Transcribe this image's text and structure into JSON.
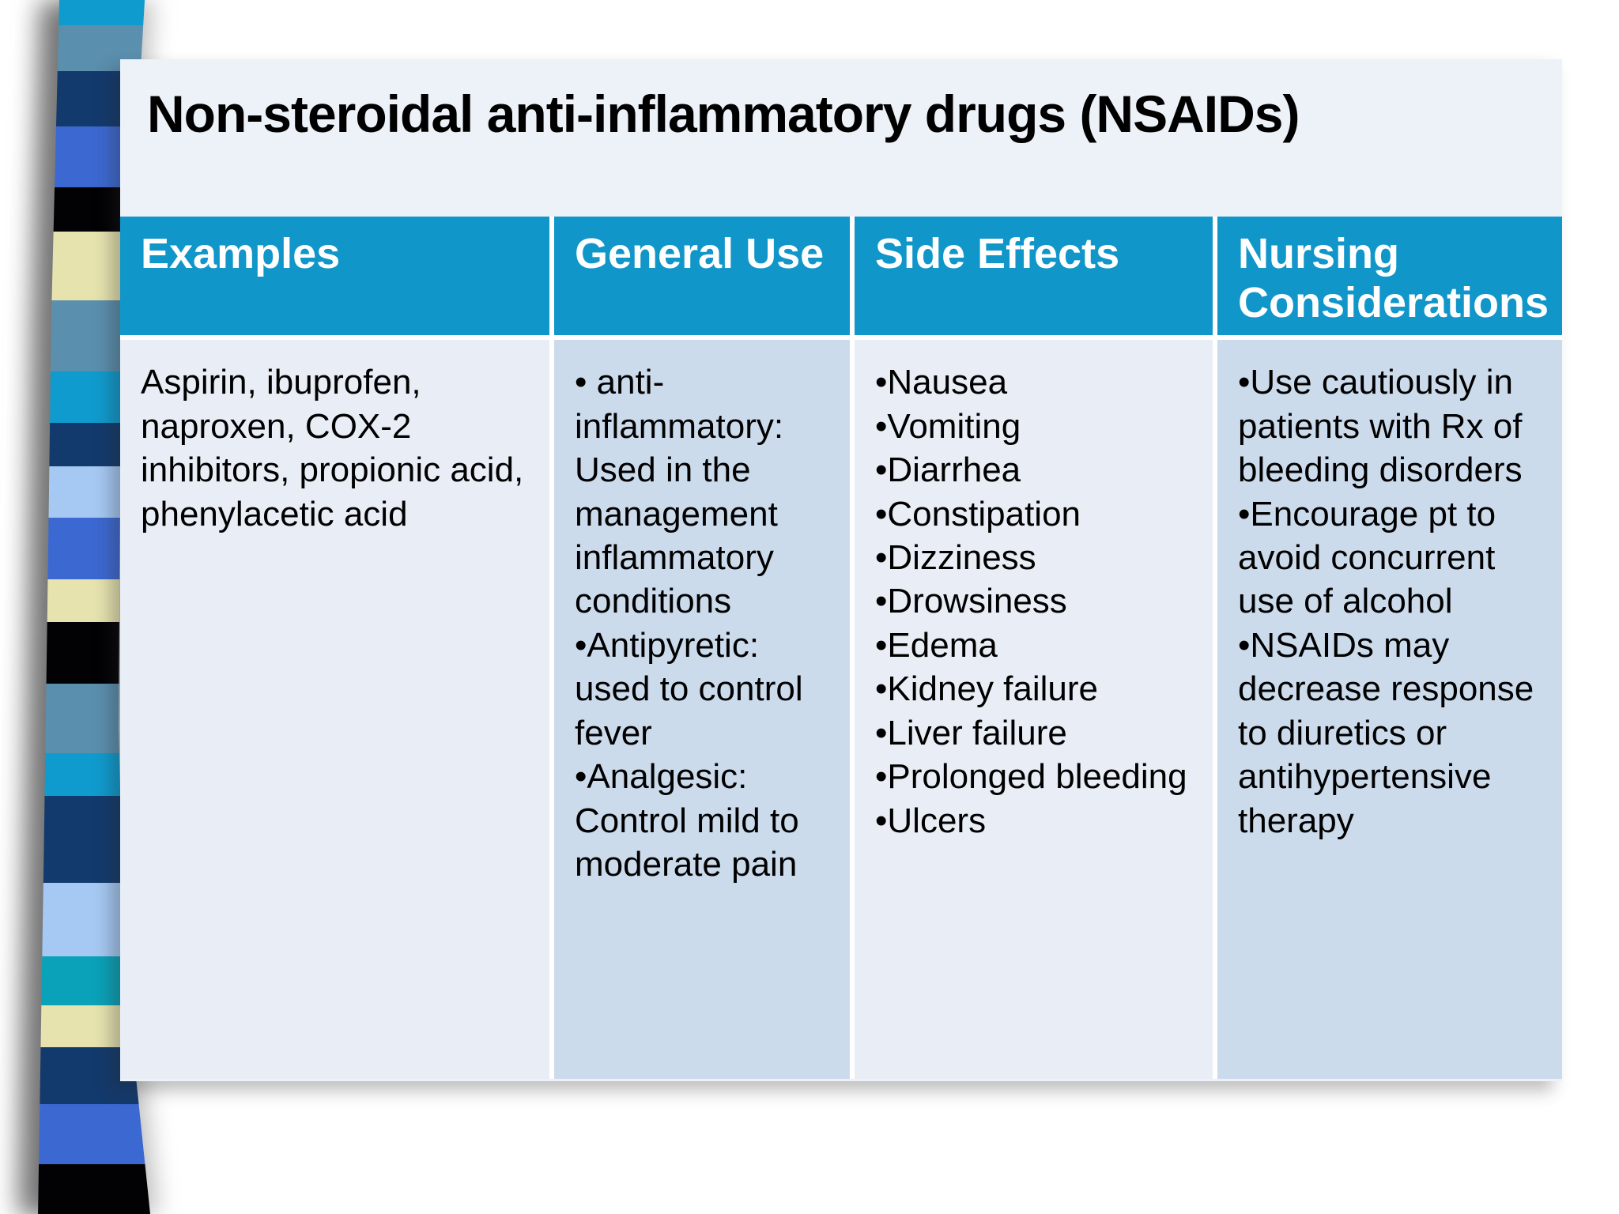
{
  "slide": {
    "title": "Non-steroidal anti-inflammatory drugs (NSAIDs)"
  },
  "table": {
    "headers": [
      "Examples",
      "General Use",
      "Side Effects",
      "Nursing Considerations"
    ],
    "row": {
      "examples": "Aspirin, ibuprofen, naproxen, COX-2 inhibitors, propionic acid, phenylacetic acid",
      "general_use": [
        "• anti-inflammatory: Used in the management inflammatory conditions",
        "•Antipyretic: used to control fever",
        "•Analgesic: Control mild to moderate pain"
      ],
      "side_effects": [
        "•Nausea",
        "•Vomiting",
        "•Diarrhea",
        "•Constipation",
        "•Dizziness",
        "•Drowsiness",
        "•Edema",
        "•Kidney failure",
        "•Liver failure",
        "•Prolonged bleeding",
        "•Ulcers"
      ],
      "nursing_considerations": [
        "•Use cautiously in patients with Rx of bleeding disorders",
        "•Encourage pt to avoid concurrent use of alcohol",
        "•NSAIDs may decrease response to diuretics or antihypertensive therapy"
      ]
    }
  },
  "colors": {
    "slide_bg": "#edf1f8",
    "header_bg": "#1196c9",
    "cell_light": "#e9eef6",
    "cell_dark": "#ccdbec",
    "ribbon": [
      "#109bce",
      "#5b8fae",
      "#133a6d",
      "#3c69d1",
      "#020204",
      "#e6e3af",
      "#5b8fae",
      "#109bce",
      "#133a6d",
      "#a6c9f3",
      "#3c69d1",
      "#e6e3af",
      "#020204",
      "#5b8fae",
      "#109bce",
      "#133a6d",
      "#a6c9f3",
      "#0aa2b8",
      "#e6e3af",
      "#133a6d",
      "#3c69d1",
      "#020204"
    ]
  }
}
